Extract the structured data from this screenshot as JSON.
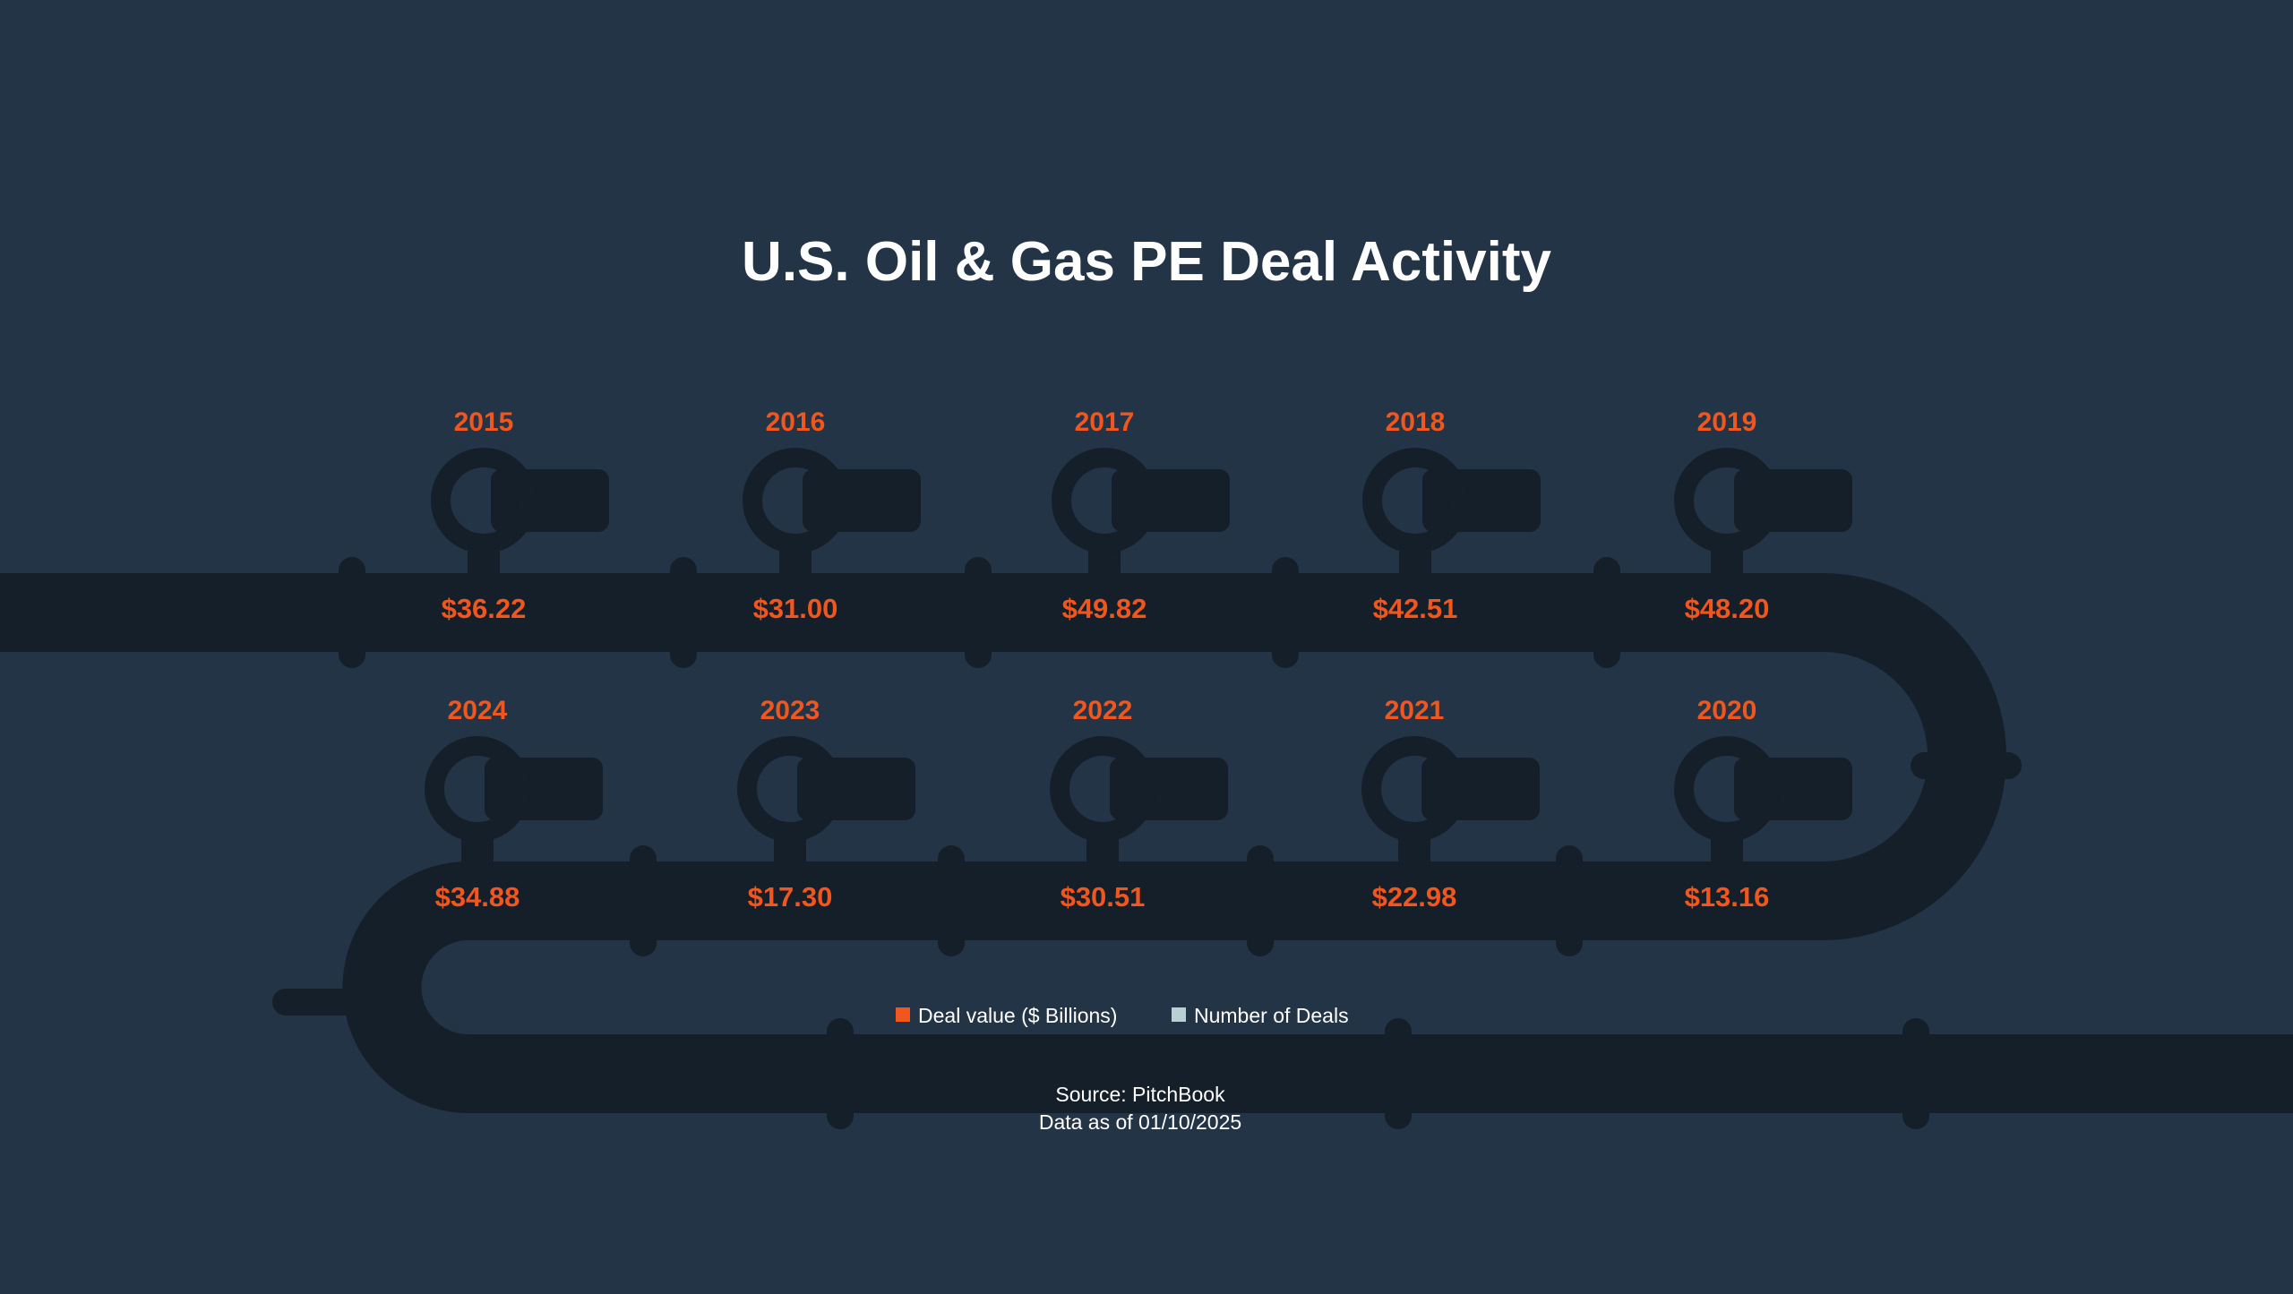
{
  "title": "U.S. Oil & Gas PE Deal Activity",
  "legend": [
    {
      "label": "Deal value ($ Billions)",
      "color": "#f0561d"
    },
    {
      "label": "Number of Deals",
      "color": "#b8cfd4"
    }
  ],
  "source": {
    "line1": "Source: PitchBook",
    "line2": "Data as of 01/10/2025"
  },
  "colors": {
    "background": "#233446",
    "pipe": "#151f29",
    "accent": "#f0561d"
  },
  "chart_data": {
    "type": "table",
    "title": "U.S. Oil & Gas PE Deal Activity",
    "categories": [
      "2015",
      "2016",
      "2017",
      "2018",
      "2019",
      "2020",
      "2021",
      "2022",
      "2023",
      "2024"
    ],
    "series": [
      {
        "name": "Deal value ($ Billions)",
        "values": [
          36.22,
          31.0,
          49.82,
          42.51,
          48.2,
          13.16,
          22.98,
          30.51,
          17.3,
          34.88
        ],
        "labels": [
          "$36.22",
          "$31.00",
          "$49.82",
          "$42.51",
          "$48.20",
          "$13.16",
          "$22.98",
          "$30.51",
          "$17.30",
          "$34.88"
        ]
      }
    ]
  }
}
